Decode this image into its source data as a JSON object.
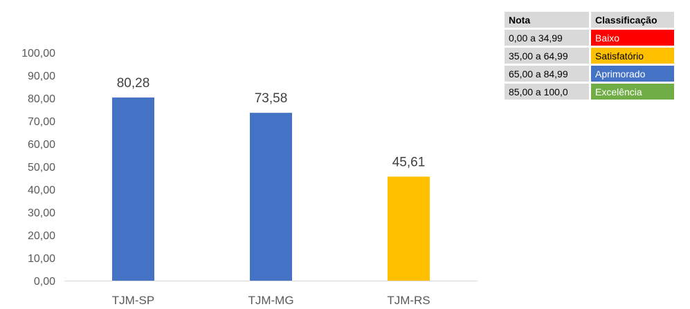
{
  "chart_data": {
    "type": "bar",
    "categories": [
      "TJM-SP",
      "TJM-MG",
      "TJM-RS"
    ],
    "values": [
      80.28,
      73.58,
      45.61
    ],
    "value_labels": [
      "80,28",
      "73,58",
      "45,61"
    ],
    "bar_colors": [
      "#4472c4",
      "#4472c4",
      "#ffc000"
    ],
    "ylim": [
      0,
      100
    ],
    "yticks": [
      "0,00",
      "10,00",
      "20,00",
      "30,00",
      "40,00",
      "50,00",
      "60,00",
      "70,00",
      "80,00",
      "90,00",
      "100,00"
    ],
    "grid": false,
    "title": "",
    "xlabel": "",
    "ylabel": ""
  },
  "legend_table": {
    "headers": [
      "Nota",
      "Classificação"
    ],
    "rows": [
      {
        "nota": "0,00 a 34,99",
        "classificacao": "Baixo",
        "color": "#ff0000",
        "text_color": "#ffffff"
      },
      {
        "nota": "35,00 a 64,99",
        "classificacao": "Satisfatório",
        "color": "#ffc000",
        "text_color": "#000000"
      },
      {
        "nota": "65,00 a 84,99",
        "classificacao": "Aprimorado",
        "color": "#4472c4",
        "text_color": "#ffffff"
      },
      {
        "nota": "85,00 a 100,0",
        "classificacao": "Excelência",
        "color": "#70ad47",
        "text_color": "#ffffff"
      }
    ]
  }
}
